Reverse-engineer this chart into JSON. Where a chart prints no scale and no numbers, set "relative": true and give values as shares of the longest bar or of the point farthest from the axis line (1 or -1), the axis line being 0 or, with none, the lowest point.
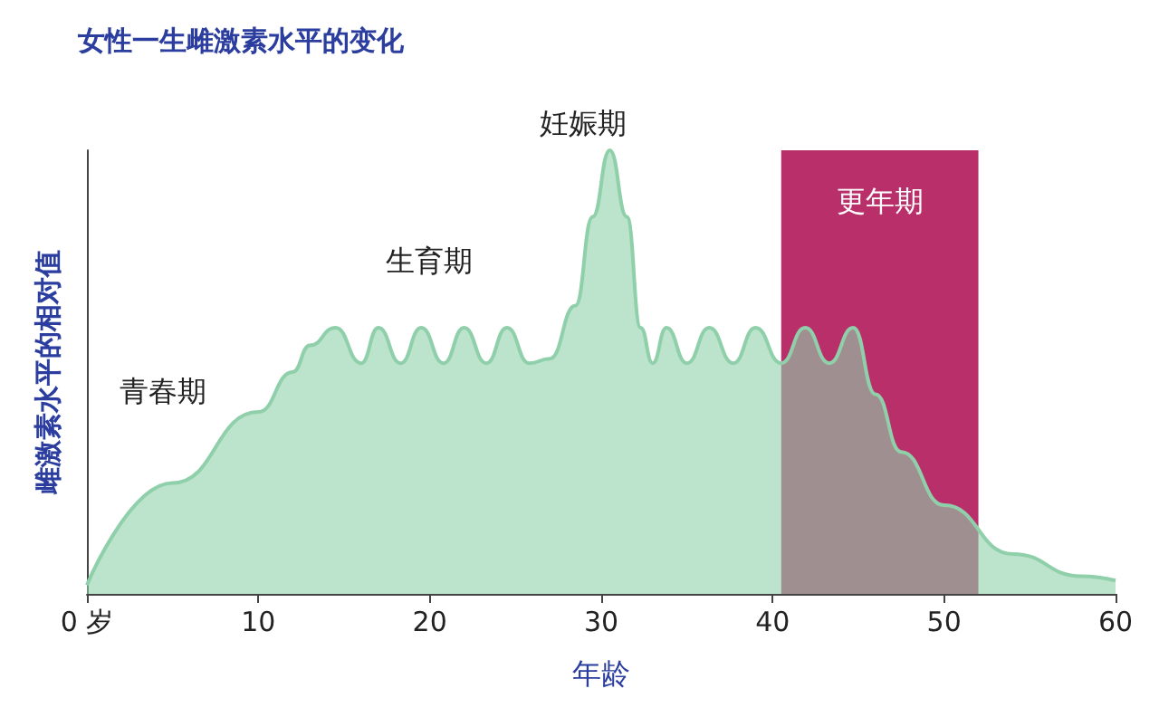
{
  "chart_data": {
    "type": "area",
    "title": "女性一生雌激素水平的变化",
    "xlabel": "年龄",
    "ylabel": "雌激素水平的相对值",
    "relative": true,
    "x": [
      0,
      5,
      10,
      12,
      13,
      14.5,
      16,
      17,
      18.3,
      19.5,
      20.8,
      22,
      23.3,
      24.5,
      25.8,
      27,
      28.5,
      29.5,
      30.5,
      31.5,
      32.3,
      33,
      33.8,
      35,
      36.3,
      37.7,
      39,
      40.5,
      41.9,
      43.3,
      44.7,
      46,
      47.5,
      50,
      54,
      58,
      60
    ],
    "series": [
      {
        "color": "#8fd0aa",
        "values": [
          0.02,
          0.25,
          0.41,
          0.5,
          0.56,
          0.6,
          0.52,
          0.6,
          0.52,
          0.6,
          0.52,
          0.6,
          0.52,
          0.6,
          0.52,
          0.53,
          0.65,
          0.85,
          1,
          0.85,
          0.6,
          0.52,
          0.6,
          0.52,
          0.6,
          0.52,
          0.6,
          0.52,
          0.6,
          0.52,
          0.6,
          0.45,
          0.32,
          0.2,
          0.09,
          0.04,
          0.03
        ]
      }
    ],
    "xlim": [
      0,
      60
    ],
    "xticks": [
      {
        "value": 0,
        "label": "0 岁"
      },
      10,
      20,
      30,
      40,
      50,
      60
    ],
    "bands": [
      {
        "axis": "x",
        "from": 40.5,
        "to": 52,
        "label": "更年期",
        "color": "#b0185a"
      }
    ],
    "annotations": [
      "青春期",
      "生育期",
      "妊娠期"
    ],
    "grid": false
  }
}
